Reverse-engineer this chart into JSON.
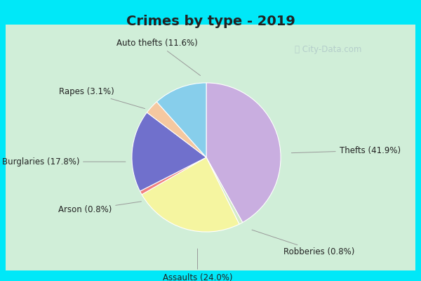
{
  "title": "Crimes by type - 2019",
  "labels": [
    "Thefts",
    "Robberies",
    "Assaults",
    "Arson",
    "Burglaries",
    "Rapes",
    "Auto thefts"
  ],
  "values": [
    41.9,
    0.8,
    24.0,
    0.8,
    17.8,
    3.1,
    11.6
  ],
  "colors": [
    "#c9aee0",
    "#d4eac8",
    "#f5f5a0",
    "#f08080",
    "#7070cc",
    "#f5c8a0",
    "#87ceeb"
  ],
  "background_cyan": "#00e8f8",
  "background_green": "#d0eed8",
  "title_fontsize": 14,
  "label_fontsize": 8.5
}
